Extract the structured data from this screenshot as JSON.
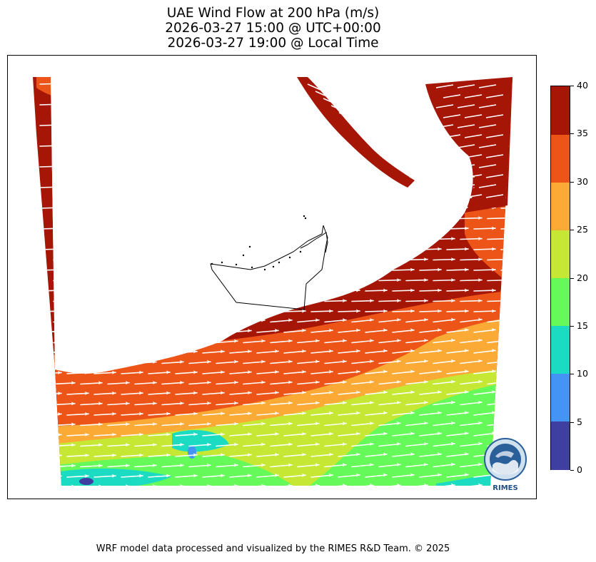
{
  "title": {
    "line1": "UAE Wind Flow at 200 hPa (m/s)",
    "line2": "2026-03-27 15:00 @ UTC+00:00",
    "line3": "2026-03-27 19:00 @ Local Time"
  },
  "colorbar": {
    "levels": [
      {
        "from": 0,
        "to": 5,
        "color": "#3e3fa0"
      },
      {
        "from": 5,
        "to": 10,
        "color": "#4394f5"
      },
      {
        "from": 10,
        "to": 15,
        "color": "#1bdcc2"
      },
      {
        "from": 15,
        "to": 20,
        "color": "#66f95a"
      },
      {
        "from": 20,
        "to": 25,
        "color": "#c6e835"
      },
      {
        "from": 25,
        "to": 30,
        "color": "#fcaa36"
      },
      {
        "from": 30,
        "to": 35,
        "color": "#ec5418"
      },
      {
        "from": 35,
        "to": 40,
        "color": "#a61606"
      }
    ],
    "tick_labels": [
      "0",
      "5",
      "10",
      "15",
      "20",
      "25",
      "30",
      "35",
      "40"
    ]
  },
  "map": {
    "region": "UAE",
    "variable": "wind speed",
    "units": "m/s",
    "level": "200 hPa",
    "vector_color": "#ffffff",
    "wind_direction": "westerly to southwesterly"
  },
  "logo": {
    "text": "RIMES",
    "ring_text": "Regional Integrated Multi-Hazard Early Warning System"
  },
  "footer": "WRF model data processed and visualized by the RIMES R&D Team. © 2025"
}
